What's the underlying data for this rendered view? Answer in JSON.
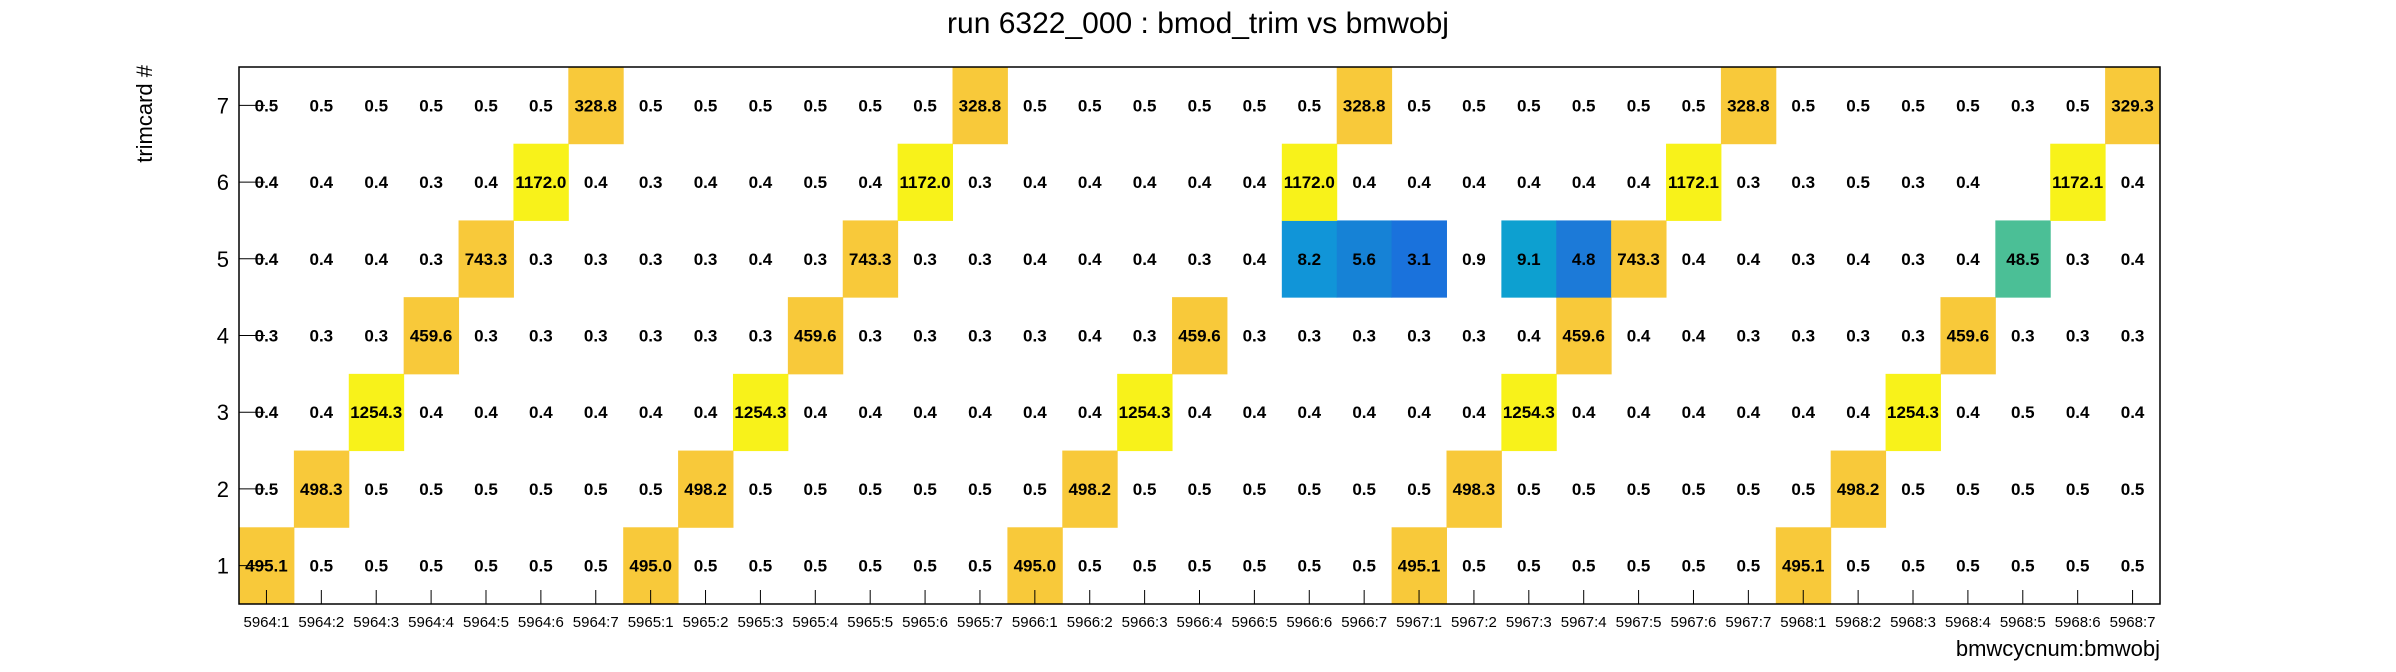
{
  "chart_data": {
    "type": "heatmap",
    "title": "run 6322_000 : bmod_trim vs bmwobj",
    "xlabel": "bmwcycnum:bmwobj",
    "ylabel": "trimcard #",
    "x_categories": [
      "5964:1",
      "5964:2",
      "5964:3",
      "5964:4",
      "5964:5",
      "5964:6",
      "5964:7",
      "5965:1",
      "5965:2",
      "5965:3",
      "5965:4",
      "5965:5",
      "5965:6",
      "5965:7",
      "5966:1",
      "5966:2",
      "5966:3",
      "5966:4",
      "5966:5",
      "5966:6",
      "5966:7",
      "5967:1",
      "5967:2",
      "5967:3",
      "5967:4",
      "5967:5",
      "5967:6",
      "5967:7",
      "5968:1",
      "5968:2",
      "5968:3",
      "5968:4",
      "5968:5",
      "5968:6",
      "5968:7"
    ],
    "y_categories": [
      "1",
      "2",
      "3",
      "4",
      "5",
      "6",
      "7"
    ],
    "values": [
      [
        "495.1",
        "0.5",
        "0.5",
        "0.5",
        "0.5",
        "0.5",
        "0.5",
        "495.0",
        "0.5",
        "0.5",
        "0.5",
        "0.5",
        "0.5",
        "0.5",
        "495.0",
        "0.5",
        "0.5",
        "0.5",
        "0.5",
        "0.5",
        "0.5",
        "495.1",
        "0.5",
        "0.5",
        "0.5",
        "0.5",
        "0.5",
        "0.5",
        "495.1",
        "0.5",
        "0.5",
        "0.5",
        "0.5",
        "0.5",
        "0.5"
      ],
      [
        "0.5",
        "498.3",
        "0.5",
        "0.5",
        "0.5",
        "0.5",
        "0.5",
        "0.5",
        "498.2",
        "0.5",
        "0.5",
        "0.5",
        "0.5",
        "0.5",
        "0.5",
        "498.2",
        "0.5",
        "0.5",
        "0.5",
        "0.5",
        "0.5",
        "0.5",
        "498.3",
        "0.5",
        "0.5",
        "0.5",
        "0.5",
        "0.5",
        "0.5",
        "498.2",
        "0.5",
        "0.5",
        "0.5",
        "0.5",
        "0.5"
      ],
      [
        "0.4",
        "0.4",
        "1254.3",
        "0.4",
        "0.4",
        "0.4",
        "0.4",
        "0.4",
        "0.4",
        "1254.3",
        "0.4",
        "0.4",
        "0.4",
        "0.4",
        "0.4",
        "0.4",
        "1254.3",
        "0.4",
        "0.4",
        "0.4",
        "0.4",
        "0.4",
        "0.4",
        "1254.3",
        "0.4",
        "0.4",
        "0.4",
        "0.4",
        "0.4",
        "0.4",
        "1254.3",
        "0.4",
        "0.5",
        "0.4",
        "0.4"
      ],
      [
        "0.3",
        "0.3",
        "0.3",
        "459.6",
        "0.3",
        "0.3",
        "0.3",
        "0.3",
        "0.3",
        "0.3",
        "459.6",
        "0.3",
        "0.3",
        "0.3",
        "0.3",
        "0.4",
        "0.3",
        "459.6",
        "0.3",
        "0.3",
        "0.3",
        "0.3",
        "0.3",
        "0.4",
        "459.6",
        "0.4",
        "0.4",
        "0.3",
        "0.3",
        "0.3",
        "0.3",
        "459.6",
        "0.3",
        "0.3",
        "0.3"
      ],
      [
        "0.4",
        "0.4",
        "0.4",
        "0.3",
        "743.3",
        "0.3",
        "0.3",
        "0.3",
        "0.3",
        "0.4",
        "0.3",
        "743.3",
        "0.3",
        "0.3",
        "0.4",
        "0.4",
        "0.4",
        "0.3",
        "0.4",
        "8.2",
        "5.6",
        "3.1",
        "0.9",
        "9.1",
        "4.8",
        "743.3",
        "0.4",
        "0.4",
        "0.3",
        "0.4",
        "0.3",
        "0.4",
        "48.5",
        "0.3",
        "0.4"
      ],
      [
        "0.4",
        "0.4",
        "0.4",
        "0.3",
        "0.4",
        "1172.0",
        "0.4",
        "0.3",
        "0.4",
        "0.4",
        "0.5",
        "0.4",
        "1172.0",
        "0.3",
        "0.4",
        "0.4",
        "0.4",
        "0.4",
        "0.4",
        "1172.0",
        "0.4",
        "0.4",
        "0.4",
        "0.4",
        "0.4",
        "0.4",
        "1172.1",
        "0.3",
        "0.3",
        "0.5",
        "0.3",
        "0.4",
        "",
        "1172.1",
        "0.4"
      ],
      [
        "0.5",
        "0.5",
        "0.5",
        "0.5",
        "0.5",
        "0.5",
        "328.8",
        "0.5",
        "0.5",
        "0.5",
        "0.5",
        "0.5",
        "0.5",
        "328.8",
        "0.5",
        "0.5",
        "0.5",
        "0.5",
        "0.5",
        "0.5",
        "328.8",
        "0.5",
        "0.5",
        "0.5",
        "0.5",
        "0.5",
        "0.5",
        "328.8",
        "0.5",
        "0.5",
        "0.5",
        "0.5",
        "0.3",
        "0.5",
        "329.3"
      ]
    ],
    "colors": {
      "low": "#f8f21a",
      "mid": "#f8c93a",
      "v9": "#0da0d0",
      "v8": "#1195d8",
      "v5": "#1682d6",
      "v4": "#1c7ad8",
      "v3": "#1a72dc",
      "v48": "#4bbf96"
    }
  }
}
